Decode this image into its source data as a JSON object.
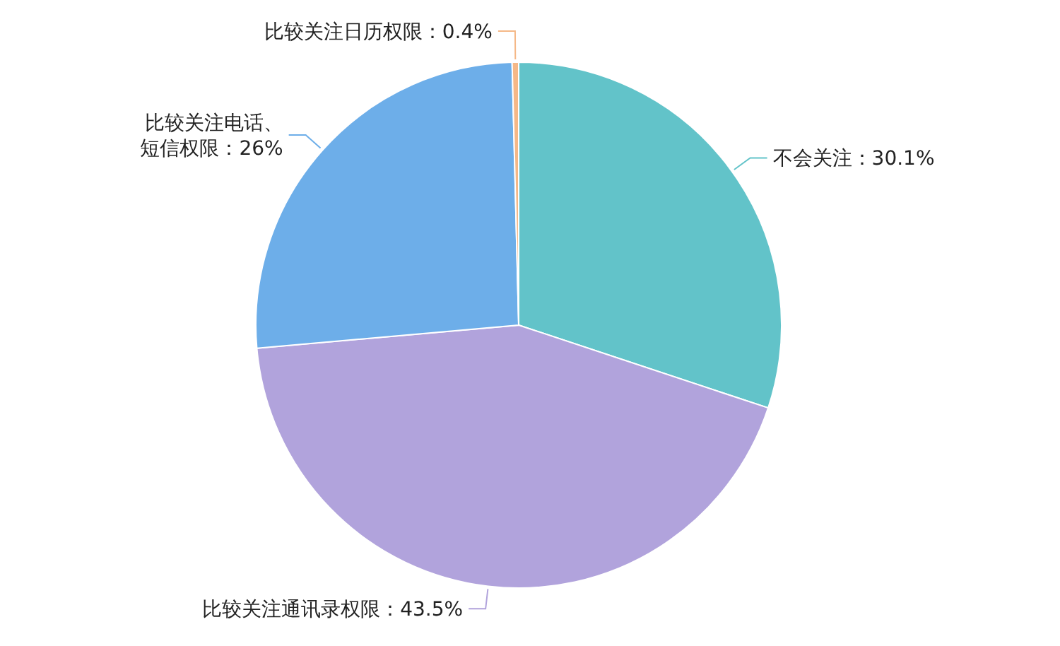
{
  "chart_data": {
    "type": "pie",
    "categories": [
      "不会关注",
      "比较关注通讯录权限",
      "比较关注电话、短信权限",
      "比较关注日历权限"
    ],
    "values": [
      30.1,
      43.5,
      26,
      0.4
    ],
    "value_labels": [
      "30.1%",
      "43.5%",
      "26%",
      "0.4%"
    ],
    "colors": [
      "#62c3c9",
      "#b1a3dc",
      "#6daee9",
      "#f5b887"
    ]
  }
}
